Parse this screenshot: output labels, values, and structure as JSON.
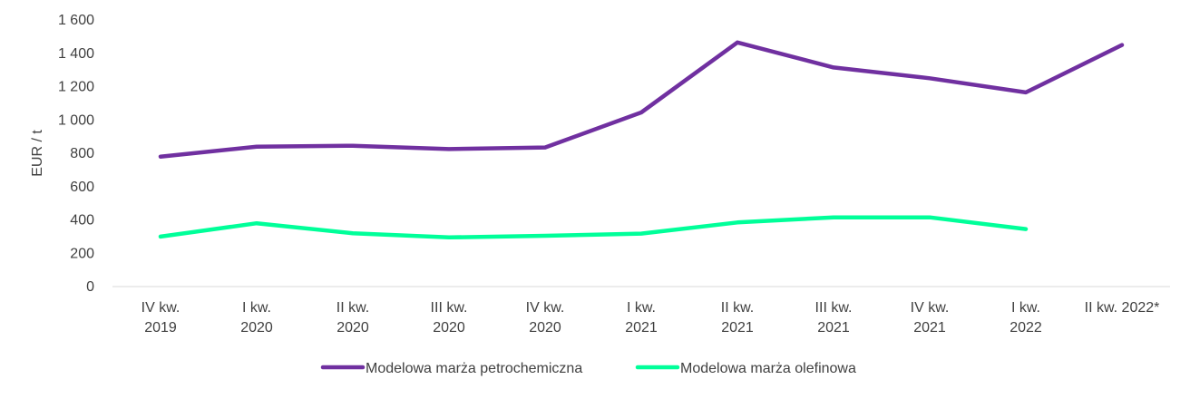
{
  "chart_data": {
    "type": "line",
    "title": "",
    "xlabel": "",
    "ylabel": "EUR / t",
    "ylim": [
      0,
      1600
    ],
    "yticks": [
      "0",
      "200",
      "400",
      "600",
      "800",
      "1 000",
      "1 200",
      "1 400",
      "1 600"
    ],
    "ytick_values": [
      0,
      200,
      400,
      600,
      800,
      1000,
      1200,
      1400,
      1600
    ],
    "grid": false,
    "legend_position": "bottom",
    "categories": [
      [
        "IV kw.",
        "2019"
      ],
      [
        "I kw.",
        "2020"
      ],
      [
        "II kw.",
        "2020"
      ],
      [
        "III kw.",
        "2020"
      ],
      [
        "IV kw.",
        "2020"
      ],
      [
        "I kw.",
        "2021"
      ],
      [
        "II kw.",
        "2021"
      ],
      [
        "III kw.",
        "2021"
      ],
      [
        "IV kw.",
        "2021"
      ],
      [
        "I kw.",
        "2022"
      ],
      [
        "II kw. 2022*"
      ]
    ],
    "series": [
      {
        "name": "Modelowa marża petrochemiczna",
        "color": "#7030A0",
        "values": [
          780,
          840,
          845,
          825,
          835,
          1045,
          1465,
          1315,
          1250,
          1165,
          1450
        ]
      },
      {
        "name": "Modelowa marża olefinowa",
        "color": "#00FF99",
        "values": [
          300,
          380,
          320,
          295,
          305,
          318,
          385,
          415,
          415,
          345,
          null
        ]
      }
    ]
  }
}
